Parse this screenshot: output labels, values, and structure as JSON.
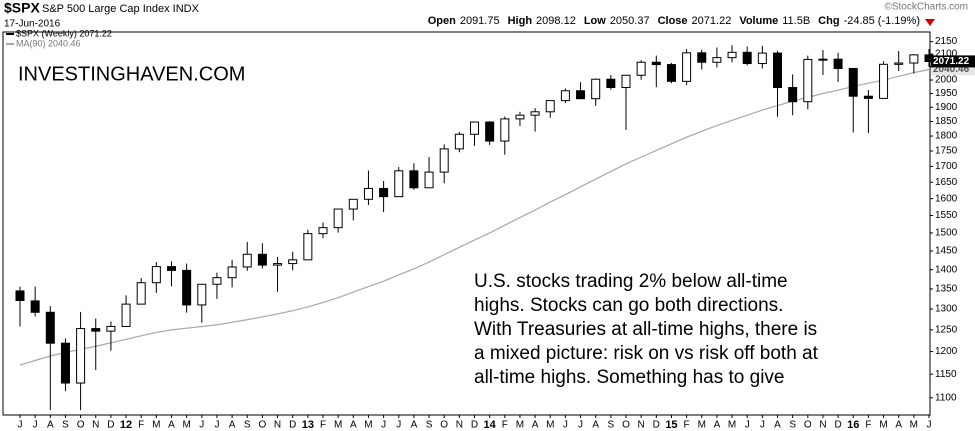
{
  "chart_data": {
    "type": "candlestick",
    "symbol": "$SPX",
    "name": "S&P 500 Large Cap Index INDX",
    "date": "17-Jun-2016",
    "credit": "©StockCharts.com",
    "quote": [
      {
        "label": "Open",
        "value": 2091.75
      },
      {
        "label": "High",
        "value": 2098.12
      },
      {
        "label": "Low",
        "value": 2050.37
      },
      {
        "label": "Close",
        "value": 2071.22
      },
      {
        "label": "Volume",
        "value": "11.5B"
      },
      {
        "label": "Chg",
        "value": "-24.85 (-1.19%)"
      }
    ],
    "legend": [
      "$SPX (Weekly) 2071.22",
      "MA(90) 2040.46"
    ],
    "watermark": "INVESTINGHAVEN.COM",
    "annotation": [
      "U.S. stocks trading 2% below all-time",
      "highs. Stocks can go both directions.",
      "With Treasuries at all-time highs, there is",
      "a mixed picture: risk on vs risk off both at",
      "all-time highs. Something has to give"
    ],
    "last_close": 2071.22,
    "last_ma": 2040.46,
    "categories": [
      "J",
      "J",
      "A",
      "S",
      "O",
      "N",
      "D",
      "12",
      "F",
      "M",
      "A",
      "M",
      "J",
      "J",
      "A",
      "S",
      "O",
      "N",
      "D",
      "13",
      "F",
      "M",
      "A",
      "M",
      "J",
      "J",
      "A",
      "S",
      "O",
      "N",
      "D",
      "14",
      "F",
      "M",
      "A",
      "M",
      "J",
      "J",
      "A",
      "S",
      "O",
      "N",
      "D",
      "15",
      "F",
      "M",
      "A",
      "M",
      "J",
      "J",
      "A",
      "S",
      "O",
      "N",
      "D",
      "16",
      "F",
      "M",
      "A",
      "M",
      "J"
    ],
    "open": [
      1345,
      1320,
      1292,
      1219,
      1131,
      1253,
      1247,
      1258,
      1312,
      1366,
      1408,
      1398,
      1310,
      1362,
      1379,
      1407,
      1441,
      1412,
      1416,
      1426,
      1498,
      1515,
      1569,
      1598,
      1631,
      1606,
      1686,
      1633,
      1682,
      1757,
      1806,
      1848,
      1783,
      1859,
      1872,
      1884,
      1924,
      1960,
      1931,
      2003,
      1972,
      2018,
      2068,
      2059,
      1995,
      2105,
      2068,
      2086,
      2107,
      2063,
      2104,
      1972,
      1920,
      2079,
      2080,
      2044,
      1940,
      1932,
      2060,
      2065,
      2097
    ],
    "high": [
      1356,
      1356,
      1307,
      1230,
      1293,
      1277,
      1270,
      1334,
      1378,
      1420,
      1422,
      1416,
      1363,
      1392,
      1426,
      1475,
      1471,
      1434,
      1448,
      1509,
      1530,
      1570,
      1598,
      1687,
      1654,
      1698,
      1710,
      1730,
      1772,
      1814,
      1849,
      1851,
      1867,
      1884,
      1897,
      1924,
      1968,
      1992,
      2006,
      2019,
      2019,
      2076,
      2094,
      2065,
      2120,
      2117,
      2126,
      2135,
      2130,
      2133,
      2113,
      2021,
      2094,
      2116,
      2105,
      2044,
      1963,
      2072,
      2112,
      2100,
      2120
    ],
    "low": [
      1258,
      1282,
      1075,
      1114,
      1075,
      1159,
      1202,
      1258,
      1312,
      1340,
      1357,
      1291,
      1267,
      1325,
      1354,
      1397,
      1403,
      1343,
      1398,
      1426,
      1485,
      1501,
      1536,
      1581,
      1560,
      1605,
      1627,
      1633,
      1647,
      1746,
      1767,
      1770,
      1738,
      1834,
      1815,
      1863,
      1915,
      1930,
      1905,
      1964,
      1821,
      2001,
      1973,
      1988,
      1981,
      2040,
      2048,
      2068,
      2056,
      2044,
      1867,
      1872,
      1893,
      2019,
      1993,
      1812,
      1810,
      1932,
      2034,
      2025,
      2050
    ],
    "close": [
      1321,
      1292,
      1219,
      1131,
      1253,
      1247,
      1258,
      1312,
      1366,
      1408,
      1398,
      1310,
      1362,
      1379,
      1407,
      1441,
      1412,
      1416,
      1426,
      1498,
      1515,
      1569,
      1598,
      1631,
      1606,
      1686,
      1633,
      1682,
      1757,
      1806,
      1848,
      1783,
      1859,
      1872,
      1884,
      1924,
      1960,
      1931,
      2003,
      1972,
      2018,
      2068,
      2059,
      1995,
      2105,
      2068,
      2086,
      2107,
      2063,
      2104,
      1972,
      1920,
      2079,
      2080,
      2044,
      1940,
      1932,
      2060,
      2065,
      2097,
      2071
    ],
    "color": "#000000",
    "ma": {
      "color": "#a8a8a8",
      "values": [
        1170,
        1180,
        1190,
        1198,
        1205,
        1212,
        1220,
        1228,
        1236,
        1244,
        1250,
        1254,
        1258,
        1262,
        1268,
        1274,
        1281,
        1288,
        1296,
        1305,
        1316,
        1328,
        1342,
        1356,
        1370,
        1386,
        1402,
        1420,
        1440,
        1460,
        1480,
        1500,
        1522,
        1544,
        1566,
        1590,
        1612,
        1636,
        1660,
        1684,
        1708,
        1730,
        1752,
        1774,
        1796,
        1816,
        1836,
        1854,
        1872,
        1890,
        1906,
        1922,
        1936,
        1950,
        1962,
        1976,
        1988,
        2000,
        2014,
        2028,
        2040
      ]
    },
    "yscale": "log",
    "ylim": [
      1065,
      2185
    ],
    "yticks": [
      1100,
      1150,
      1200,
      1250,
      1300,
      1350,
      1400,
      1450,
      1500,
      1550,
      1600,
      1650,
      1700,
      1750,
      1800,
      1850,
      1900,
      1950,
      2000,
      2050,
      2100,
      2150
    ],
    "grid": false
  }
}
